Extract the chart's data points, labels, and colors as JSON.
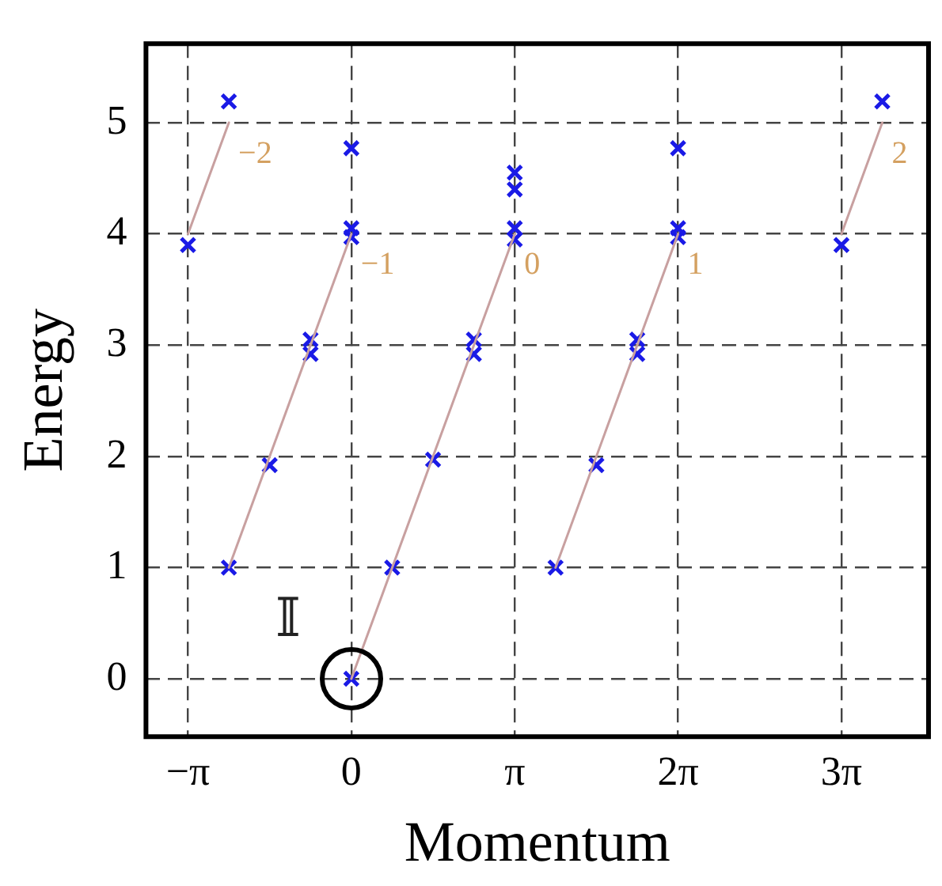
{
  "chart_data": {
    "type": "scatter",
    "xlabel": "Momentum",
    "ylabel": "Energy",
    "xlim": [
      -3.95,
      11.1
    ],
    "ylim": [
      -0.52,
      5.71
    ],
    "xticks": [
      {
        "value": -3.142,
        "label": "−π"
      },
      {
        "value": 0,
        "label": "0"
      },
      {
        "value": 3.142,
        "label": "π"
      },
      {
        "value": 6.283,
        "label": "2π"
      },
      {
        "value": 9.425,
        "label": "3π"
      }
    ],
    "yticks": [
      0,
      1,
      2,
      3,
      4,
      5
    ],
    "grid": true,
    "series": [
      {
        "type": "line",
        "name": "−2",
        "color": "#c8a0a0",
        "x": [
          -3.142,
          -2.356
        ],
        "values": [
          4,
          5
        ]
      },
      {
        "type": "line",
        "name": "−1",
        "color": "#c8a0a0",
        "x": [
          -2.356,
          0
        ],
        "values": [
          1,
          4
        ]
      },
      {
        "type": "line",
        "name": "0",
        "color": "#c8a0a0",
        "x": [
          0,
          3.142
        ],
        "values": [
          0,
          4
        ]
      },
      {
        "type": "line",
        "name": "1",
        "color": "#c8a0a0",
        "x": [
          3.927,
          6.283
        ],
        "values": [
          1,
          4
        ]
      },
      {
        "type": "line",
        "name": "2",
        "color": "#c8a0a0",
        "x": [
          9.425,
          10.21
        ],
        "values": [
          4,
          5
        ]
      },
      {
        "color": "#1a1ae6",
        "marker": "cross",
        "x": [
          -3.142,
          -2.356,
          -2.356,
          -1.571,
          -0.785,
          -0.785,
          0,
          0,
          0,
          0,
          0.785,
          1.571,
          2.356,
          2.356,
          3.142,
          3.142,
          3.142,
          3.142,
          3.927,
          4.712,
          5.498,
          5.498,
          6.283,
          6.283,
          6.283,
          9.425,
          10.21
        ],
        "values": [
          3.9,
          5.19,
          1.0,
          1.92,
          3.05,
          2.92,
          0,
          3.97,
          4.05,
          4.77,
          1.0,
          1.97,
          3.05,
          2.92,
          3.95,
          4.05,
          4.4,
          4.55,
          1.0,
          1.92,
          3.05,
          2.92,
          3.97,
          4.05,
          4.77,
          3.9,
          5.19
        ]
      }
    ],
    "annotations": [
      "𝕀"
    ]
  }
}
